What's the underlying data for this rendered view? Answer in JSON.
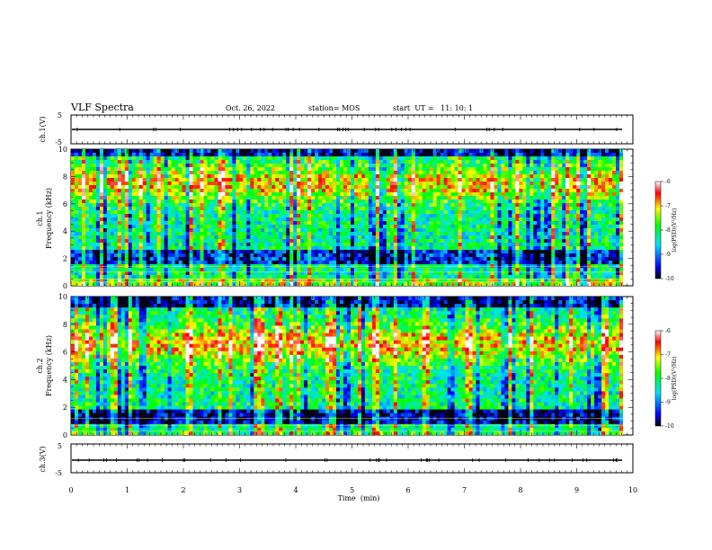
{
  "header": {
    "title": "VLF Spectra",
    "date": "Oct. 26, 2022",
    "station": "station= MOS",
    "start": "start  UT =   11: 10: 1"
  },
  "chart_data": [
    {
      "type": "line",
      "name": "ch1-waveform",
      "ylabel": "ch.1(V)",
      "ylim": [
        -5,
        5
      ],
      "yticks": [
        "5",
        "-5"
      ],
      "baseline": 0,
      "xlim": [
        0,
        10
      ]
    },
    {
      "type": "heatmap",
      "name": "ch1-spectrogram",
      "ylabel_line1": "ch.1",
      "ylabel_line2": "Frequency (kHz)",
      "ylim": [
        0,
        10
      ],
      "yticks": [
        "0",
        "2",
        "4",
        "6",
        "8",
        "10"
      ],
      "xlim": [
        0,
        9.85
      ],
      "colorbar": {
        "label": "log(PSD)(V²/Hz)",
        "range": [
          -10,
          -6
        ],
        "ticks": [
          "-6",
          "-7",
          "-8",
          "-9",
          "-10"
        ]
      }
    },
    {
      "type": "heatmap",
      "name": "ch2-spectrogram",
      "ylabel_line1": "ch.2",
      "ylabel_line2": "Frequency (kHz)",
      "ylim": [
        0,
        10
      ],
      "yticks": [
        "0",
        "2",
        "4",
        "6",
        "8",
        "10"
      ],
      "xlim": [
        0,
        9.85
      ],
      "colorbar": {
        "label": "log(PSD)(V²/Hz)",
        "range": [
          -10,
          -6
        ],
        "ticks": [
          "-6",
          "-7",
          "-8",
          "-9",
          "-10"
        ]
      }
    },
    {
      "type": "line",
      "name": "ch3-waveform",
      "ylabel": "ch.3(V)",
      "ylim": [
        -5,
        5
      ],
      "yticks": [
        "5",
        "-5"
      ],
      "baseline": 0,
      "xlim": [
        0,
        10
      ]
    }
  ],
  "xaxis": {
    "label": "Time  (min)",
    "range": [
      0,
      10
    ],
    "ticks": [
      "0",
      "1",
      "2",
      "3",
      "4",
      "5",
      "6",
      "7",
      "8",
      "9",
      "10"
    ]
  },
  "colors": {
    "colormap": [
      "#000030",
      "#0000ff",
      "#00ffff",
      "#00ff00",
      "#ffff00",
      "#ff0000",
      "#ffffff"
    ]
  }
}
